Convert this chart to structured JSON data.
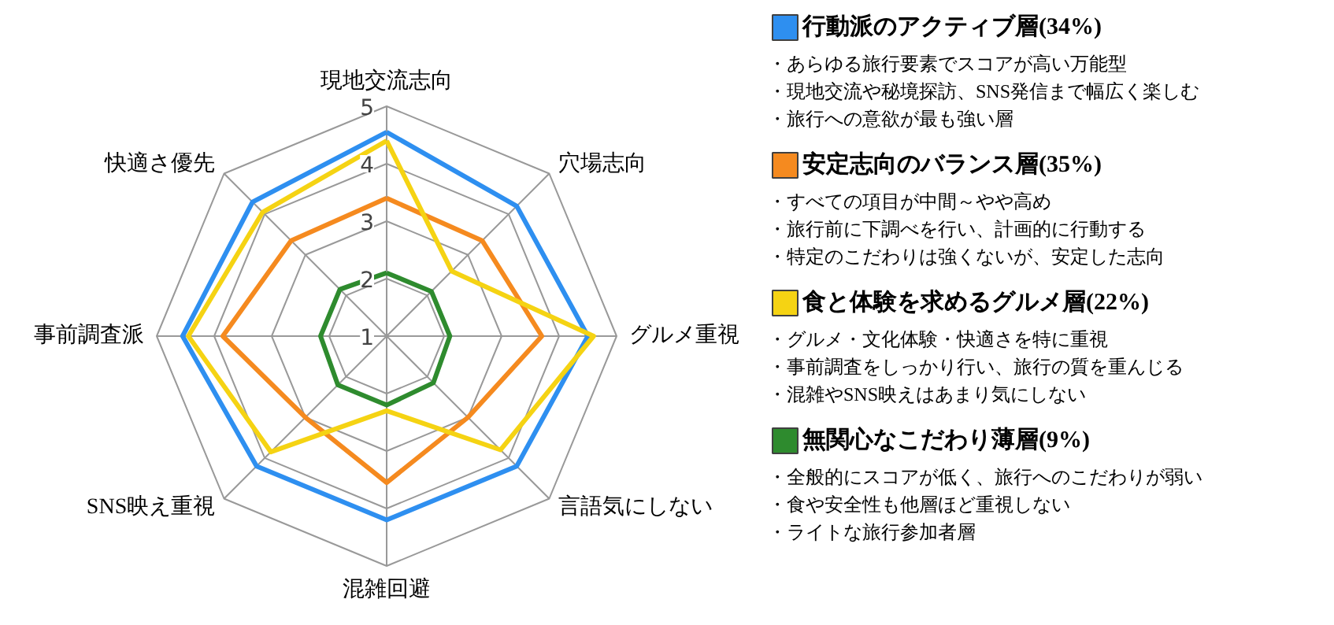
{
  "chart_data": {
    "type": "radar",
    "categories": [
      "現地交流志向",
      "穴場志向",
      "グルメ重視",
      "言語気にしない",
      "混雑回避",
      "SNS映え重視",
      "事前調査派",
      "快適さ優先"
    ],
    "ylim": [
      1,
      5
    ],
    "yticks": [
      1,
      2,
      3,
      4,
      5
    ],
    "grid": true,
    "legend": "right",
    "series": [
      {
        "name": "行動派のアクティブ層(34%)",
        "color": "#2e8ff0",
        "values": [
          4.55,
          4.2,
          4.5,
          4.2,
          4.2,
          4.2,
          4.55,
          4.3
        ]
      },
      {
        "name": "安定志向のバランス層(35%)",
        "color": "#f58a1f",
        "values": [
          3.4,
          3.35,
          3.7,
          3.0,
          3.55,
          3.0,
          3.85,
          3.35
        ]
      },
      {
        "name": "食と体験を求めるグルメ層(22%)",
        "color": "#f5d313",
        "values": [
          4.4,
          2.6,
          4.6,
          3.8,
          2.3,
          3.85,
          4.45,
          4.05
        ]
      },
      {
        "name": "無関心なこだわり薄層(9%)",
        "color": "#2e8b2e",
        "values": [
          2.1,
          2.1,
          2.1,
          2.15,
          2.2,
          2.2,
          2.15,
          2.15
        ]
      }
    ],
    "annotations": [
      "・あらゆる旅行要素でスコアが高い万能型",
      "・現地交流や秘境探訪、SNS発信まで幅広く楽しむ",
      "・旅行への意欲が最も強い層",
      "・すべての項目が中間～やや高め",
      "・旅行前に下調べを行い、計画的に行動する",
      "・特定のこだわりは強くないが、安定した志向",
      "・グルメ・文化体験・快適さを特に重視",
      "・事前調査をしっかり行い、旅行の質を重んじる",
      "・混雑やSNS映えはあまり気にしない",
      "・全般的にスコアが低く、旅行へのこだわりが弱い",
      "・食や安全性も他層ほど重視しない",
      "・ライトな旅行参加者層"
    ]
  }
}
